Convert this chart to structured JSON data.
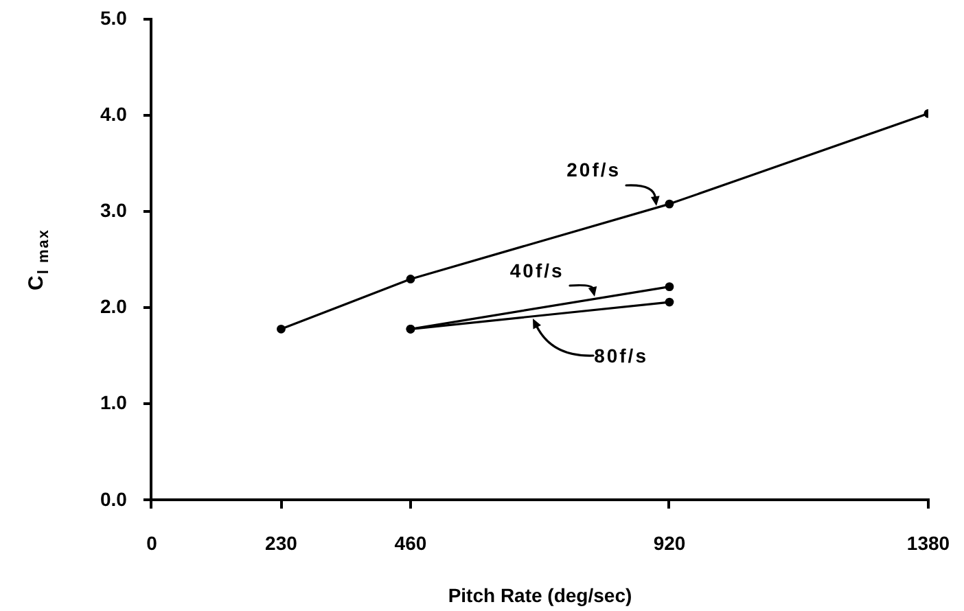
{
  "chart_data": {
    "type": "line",
    "xlabel": "Pitch Rate (deg/sec)",
    "ylabel": "C$_{l max}$",
    "series": [
      {
        "name": "20f/s",
        "color": "#000000",
        "x": [
          230,
          460,
          920,
          1380
        ],
        "values": [
          1.78,
          2.3,
          3.08,
          4.02
        ]
      },
      {
        "name": "40f/s",
        "color": "#000000",
        "x": [
          460,
          920
        ],
        "values": [
          1.78,
          2.22
        ]
      },
      {
        "name": "80f/s",
        "color": "#000000",
        "x": [
          460,
          920
        ],
        "values": [
          1.78,
          2.06
        ]
      }
    ],
    "xlim": [
      0,
      1380
    ],
    "xticks": [
      0,
      230,
      460,
      920,
      1380
    ],
    "ylim": [
      0,
      5
    ],
    "yticks": [
      {
        "value": 0,
        "label": "0.0"
      },
      {
        "value": 1,
        "label": "1.0"
      },
      {
        "value": 2,
        "label": "2.0"
      },
      {
        "value": 3,
        "label": "3.0"
      },
      {
        "value": 4,
        "label": "4.0"
      },
      {
        "value": 5,
        "label": "5.0"
      }
    ],
    "marker": "circle",
    "line_style": "solid"
  }
}
